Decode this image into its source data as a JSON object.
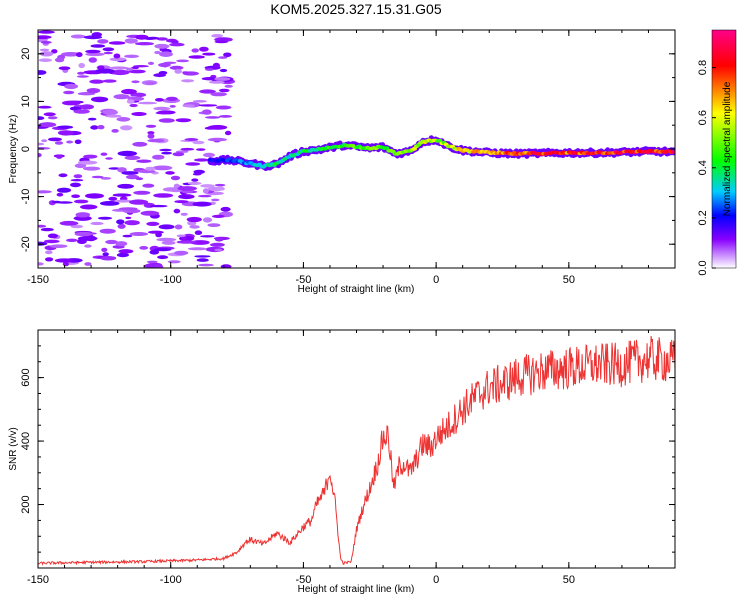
{
  "title": "KOM5.2025.327.15.31.G05",
  "chart_data": [
    {
      "type": "heatmap",
      "name": "spectrogram",
      "xlabel": "Height of straight line (km)",
      "ylabel": "Frequency (Hz)",
      "xlim": [
        -150,
        90
      ],
      "ylim": [
        -25,
        25
      ],
      "xticks": [
        -150,
        -100,
        -50,
        0,
        50
      ],
      "xtick_labels": [
        "-150",
        "-100",
        "-50",
        "0",
        "50"
      ],
      "yticks": [
        20,
        10,
        0,
        -10,
        -20
      ],
      "ytick_labels": [
        "20",
        "10",
        "0",
        "-10",
        "-20"
      ],
      "colorbar": {
        "label": "Normalized spectral amplitude",
        "range": [
          0,
          0.95
        ],
        "ticks": [
          0.0,
          0.2,
          0.4,
          0.6,
          0.8
        ],
        "tick_labels": [
          "0.0",
          "0.2",
          "0.4",
          "0.6",
          "0.8"
        ],
        "stops": [
          "#ffffff",
          "#7700ff",
          "#0000ff",
          "#00ffff",
          "#00ff00",
          "#ffff00",
          "#ff0000",
          "#ff0088"
        ]
      },
      "ridge": {
        "x": [
          -85,
          -78,
          -70,
          -65,
          -60,
          -55,
          -50,
          -45,
          -40,
          -35,
          -30,
          -25,
          -20,
          -15,
          -10,
          -5,
          0,
          5,
          10,
          20,
          30,
          40,
          50,
          60,
          70,
          80,
          90
        ],
        "freq": [
          -2.5,
          -2.3,
          -3.0,
          -3.6,
          -3.2,
          -1.5,
          -0.5,
          -0.2,
          0.3,
          0.8,
          0.5,
          0.2,
          0.4,
          -1.0,
          -0.5,
          1.5,
          2.0,
          0.5,
          -0.3,
          -0.8,
          -1.0,
          -0.9,
          -0.8,
          -0.8,
          -0.7,
          -0.5,
          -0.6
        ],
        "amplitude": [
          0.2,
          0.25,
          0.3,
          0.35,
          0.4,
          0.35,
          0.4,
          0.4,
          0.45,
          0.45,
          0.5,
          0.5,
          0.5,
          0.5,
          0.55,
          0.6,
          0.55,
          0.6,
          0.65,
          0.75,
          0.8,
          0.8,
          0.8,
          0.8,
          0.85,
          0.85,
          0.85
        ]
      }
    },
    {
      "type": "line",
      "name": "snr",
      "xlabel": "Height of straight line (km)",
      "ylabel": "SNR (v/v)",
      "xlim": [
        -150,
        90
      ],
      "ylim": [
        0,
        750
      ],
      "xticks": [
        -150,
        -100,
        -50,
        0,
        50
      ],
      "xtick_labels": [
        "-150",
        "-100",
        "-50",
        "0",
        "50"
      ],
      "yticks": [
        200,
        400,
        600
      ],
      "ytick_labels": [
        "200",
        "400",
        "600"
      ],
      "color": "#ee3333",
      "x": [
        -150,
        -130,
        -110,
        -90,
        -80,
        -75,
        -72,
        -70,
        -65,
        -60,
        -55,
        -50,
        -47,
        -45,
        -42,
        -40,
        -38,
        -36,
        -35,
        -32,
        -30,
        -28,
        -25,
        -22,
        -20,
        -18,
        -16,
        -14,
        -12,
        -10,
        -8,
        -5,
        -2,
        0,
        5,
        10,
        15,
        20,
        25,
        30,
        40,
        50,
        60,
        70,
        80,
        90
      ],
      "y": [
        15,
        18,
        20,
        25,
        30,
        50,
        80,
        90,
        75,
        110,
        80,
        130,
        150,
        200,
        240,
        310,
        200,
        30,
        15,
        20,
        120,
        180,
        250,
        330,
        410,
        420,
        250,
        320,
        330,
        300,
        330,
        390,
        380,
        410,
        450,
        500,
        540,
        570,
        580,
        600,
        620,
        630,
        640,
        640,
        660,
        650
      ]
    }
  ]
}
